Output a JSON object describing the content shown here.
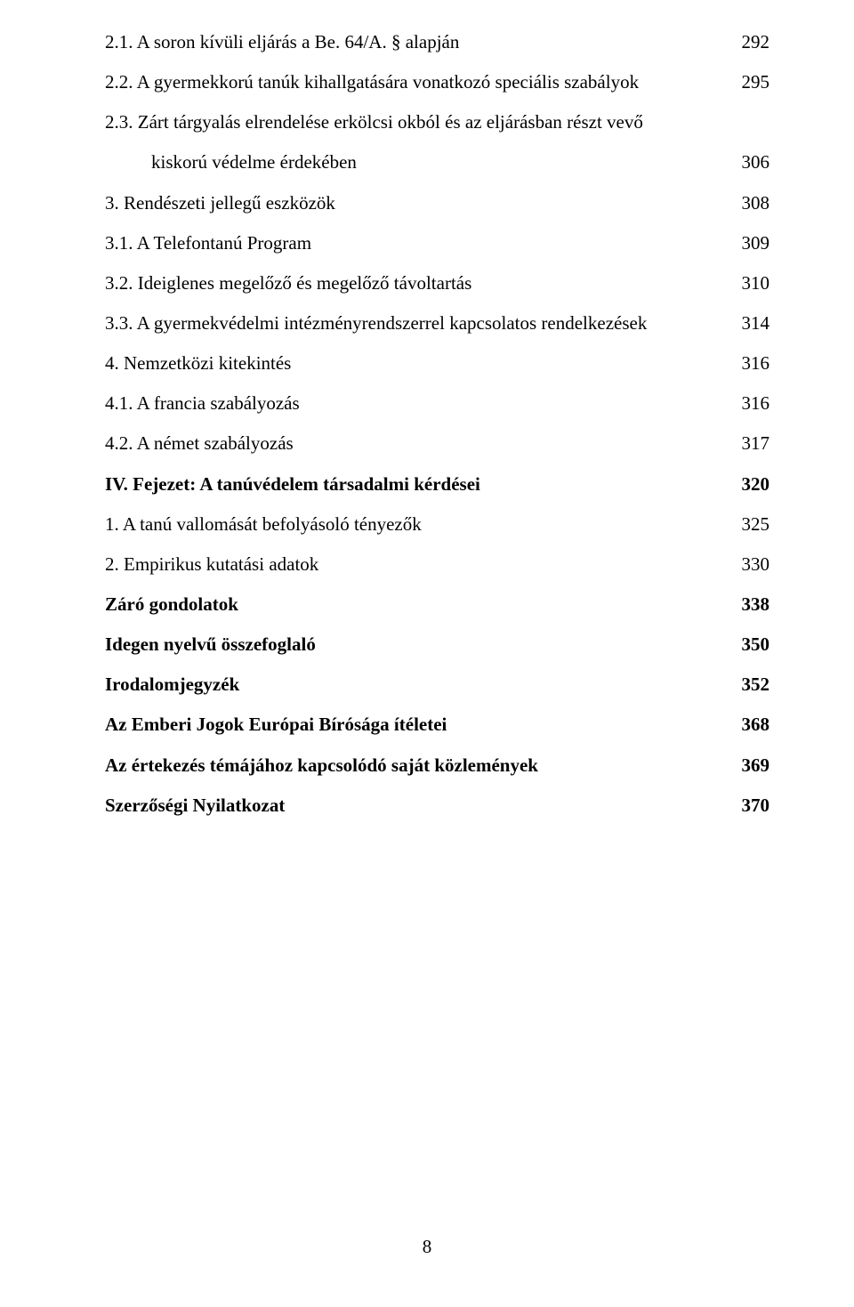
{
  "entries": [
    {
      "text": "2.1. A soron kívüli eljárás a Be. 64/A. § alapján",
      "page": "292",
      "indent": "indent-1",
      "bold": false
    },
    {
      "text": "2.2. A gyermekkorú tanúk kihallgatására vonatkozó speciális szabályok",
      "page": "295",
      "indent": "indent-1",
      "bold": false
    },
    {
      "text": "2.3. Zárt tárgyalás elrendelése erkölcsi okból és az eljárásban részt vevő",
      "page": "",
      "indent": "indent-1",
      "bold": false
    },
    {
      "text": "kiskorú védelme érdekében",
      "page": "306",
      "indent": "indent-sub",
      "bold": false
    },
    {
      "text": "3. Rendészeti jellegű eszközök",
      "page": "308",
      "indent": "indent-1",
      "bold": false
    },
    {
      "text": "3.1. A Telefontanú Program",
      "page": "309",
      "indent": "indent-1",
      "bold": false
    },
    {
      "text": "3.2. Ideiglenes megelőző és megelőző távoltartás",
      "page": "310",
      "indent": "indent-1",
      "bold": false
    },
    {
      "text": "3.3. A gyermekvédelmi intézményrendszerrel kapcsolatos rendelkezések",
      "page": "314",
      "indent": "indent-1",
      "bold": false
    },
    {
      "text": "4. Nemzetközi kitekintés",
      "page": "316",
      "indent": "indent-1",
      "bold": false
    },
    {
      "text": "4.1. A francia szabályozás",
      "page": "316",
      "indent": "indent-1",
      "bold": false
    },
    {
      "text": "4.2. A német szabályozás",
      "page": "317",
      "indent": "indent-1",
      "bold": false
    },
    {
      "text": "IV. Fejezet: A tanúvédelem társadalmi kérdései",
      "page": "320",
      "indent": "indent-1",
      "bold": true
    },
    {
      "text": "1. A tanú vallomását befolyásoló tényezők",
      "page": "325",
      "indent": "indent-1",
      "bold": false
    },
    {
      "text": "2. Empirikus kutatási adatok",
      "page": "330",
      "indent": "indent-1",
      "bold": false
    },
    {
      "text": "Záró gondolatok",
      "page": "338",
      "indent": "indent-1",
      "bold": true
    },
    {
      "text": "Idegen nyelvű összefoglaló",
      "page": "350",
      "indent": "indent-1",
      "bold": true
    },
    {
      "text": "Irodalomjegyzék",
      "page": "352",
      "indent": "indent-1",
      "bold": true
    },
    {
      "text": "Az Emberi Jogok Európai Bírósága ítéletei",
      "page": "368",
      "indent": "indent-1",
      "bold": true
    },
    {
      "text": "Az értekezés témájához kapcsolódó saját közlemények",
      "page": "369",
      "indent": "indent-1",
      "bold": true
    },
    {
      "text": "Szerzőségi Nyilatkozat",
      "page": "370",
      "indent": "indent-1",
      "bold": true
    }
  ],
  "pageNumber": "8"
}
